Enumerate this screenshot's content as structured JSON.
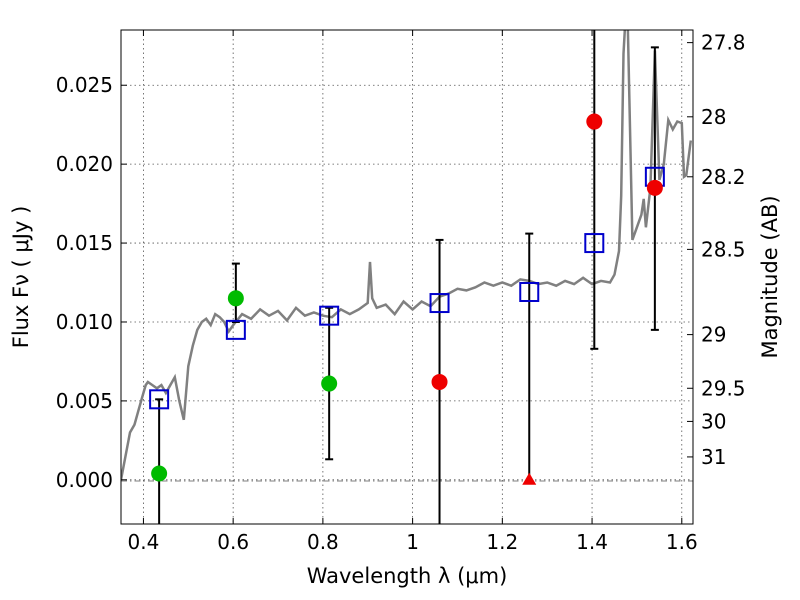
{
  "chart_data": {
    "type": "scatter",
    "xlabel": "Wavelength  λ (μm)",
    "ylabel_left": "Flux  Fν  ( μJy )",
    "ylabel_right": "Magnitude (AB)",
    "xlim": [
      0.35,
      1.625
    ],
    "ylim": [
      -0.0028,
      0.0285
    ],
    "x_ticks": [
      0.4,
      0.6,
      0.8,
      1.0,
      1.2,
      1.4,
      1.6
    ],
    "x_tick_labels": [
      "0.4",
      "0.6",
      "0.8",
      "1",
      "1.2",
      "1.4",
      "1.6"
    ],
    "y_ticks": [
      0.0,
      0.005,
      0.01,
      0.015,
      0.02,
      0.025
    ],
    "y_tick_labels": [
      "0.000",
      "0.005",
      "0.010",
      "0.015",
      "0.020",
      "0.025"
    ],
    "right_ticks": [
      {
        "label": "27.8",
        "flux": 0.0277
      },
      {
        "label": "28",
        "flux": 0.023
      },
      {
        "label": "28.2",
        "flux": 0.0192
      },
      {
        "label": "28.5",
        "flux": 0.0146
      },
      {
        "label": "29",
        "flux": 0.0092
      },
      {
        "label": "29.5",
        "flux": 0.0058
      },
      {
        "label": "30",
        "flux": 0.0037
      },
      {
        "label": "31",
        "flux": 0.00145
      }
    ],
    "grid": true,
    "series": [
      {
        "style": "line",
        "color": "#808080",
        "x": [
          0.35,
          0.36,
          0.37,
          0.38,
          0.39,
          0.4,
          0.405,
          0.41,
          0.42,
          0.43,
          0.44,
          0.45,
          0.46,
          0.47,
          0.48,
          0.49,
          0.5,
          0.51,
          0.52,
          0.53,
          0.54,
          0.55,
          0.56,
          0.57,
          0.58,
          0.59,
          0.6,
          0.62,
          0.64,
          0.66,
          0.68,
          0.7,
          0.72,
          0.74,
          0.76,
          0.78,
          0.8,
          0.82,
          0.84,
          0.86,
          0.88,
          0.9,
          0.905,
          0.91,
          0.92,
          0.94,
          0.96,
          0.98,
          1.0,
          1.02,
          1.04,
          1.06,
          1.08,
          1.1,
          1.12,
          1.14,
          1.16,
          1.18,
          1.2,
          1.22,
          1.24,
          1.26,
          1.28,
          1.3,
          1.32,
          1.34,
          1.36,
          1.38,
          1.4,
          1.42,
          1.44,
          1.45,
          1.46,
          1.465,
          1.47,
          1.475,
          1.48,
          1.49,
          1.5,
          1.51,
          1.515,
          1.52,
          1.53,
          1.54,
          1.55,
          1.56,
          1.57,
          1.58,
          1.59,
          1.6,
          1.605,
          1.61,
          1.62
        ],
        "y": [
          0.0,
          0.0015,
          0.003,
          0.0035,
          0.0045,
          0.0055,
          0.006,
          0.0062,
          0.006,
          0.0058,
          0.006,
          0.0055,
          0.006,
          0.0065,
          0.005,
          0.0038,
          0.0072,
          0.0085,
          0.0095,
          0.01,
          0.0102,
          0.0098,
          0.0105,
          0.0103,
          0.01,
          0.0094,
          0.0098,
          0.0105,
          0.0102,
          0.0108,
          0.0104,
          0.0107,
          0.0101,
          0.0109,
          0.0104,
          0.0106,
          0.0104,
          0.0103,
          0.0108,
          0.0105,
          0.0108,
          0.0112,
          0.0138,
          0.0115,
          0.0109,
          0.0111,
          0.0105,
          0.0113,
          0.0108,
          0.0113,
          0.011,
          0.0116,
          0.0118,
          0.0121,
          0.012,
          0.0122,
          0.0125,
          0.0123,
          0.0125,
          0.0123,
          0.0127,
          0.0126,
          0.0124,
          0.0125,
          0.0123,
          0.0126,
          0.0124,
          0.0128,
          0.0124,
          0.0126,
          0.0125,
          0.013,
          0.0145,
          0.018,
          0.027,
          0.0295,
          0.0285,
          0.0152,
          0.016,
          0.0168,
          0.0178,
          0.016,
          0.0185,
          0.0272,
          0.019,
          0.02,
          0.0228,
          0.0222,
          0.0227,
          0.0226,
          0.0192,
          0.0193,
          0.0215
        ]
      },
      {
        "style": "open-square",
        "color": "#0000cc",
        "x": [
          0.435,
          0.606,
          0.814,
          1.06,
          1.26,
          1.405,
          1.54
        ],
        "y": [
          0.0051,
          0.0095,
          0.0104,
          0.0112,
          0.0119,
          0.015,
          0.0192
        ]
      },
      {
        "style": "filled-circle",
        "color": "#00bb00",
        "x": [
          0.435,
          0.606,
          0.814
        ],
        "y": [
          0.0004,
          0.0115,
          0.0061
        ],
        "yerr_low": [
          -0.0028,
          0.01,
          0.0013
        ],
        "yerr_high": [
          0.0051,
          0.0137,
          0.0109
        ]
      },
      {
        "style": "filled-circle",
        "color": "#ee0000",
        "x": [
          1.06,
          1.405,
          1.54
        ],
        "y": [
          0.0062,
          0.0227,
          0.0185
        ],
        "yerr_low": [
          -0.0028,
          0.0083,
          0.0095
        ],
        "yerr_high": [
          0.0152,
          0.0285,
          0.0274
        ]
      },
      {
        "style": "filled-triangle",
        "color": "#ee0000",
        "x": [
          1.26
        ],
        "y": [
          0.0
        ],
        "yerr_low": [
          0.0
        ],
        "yerr_high": [
          0.0156
        ]
      }
    ]
  }
}
